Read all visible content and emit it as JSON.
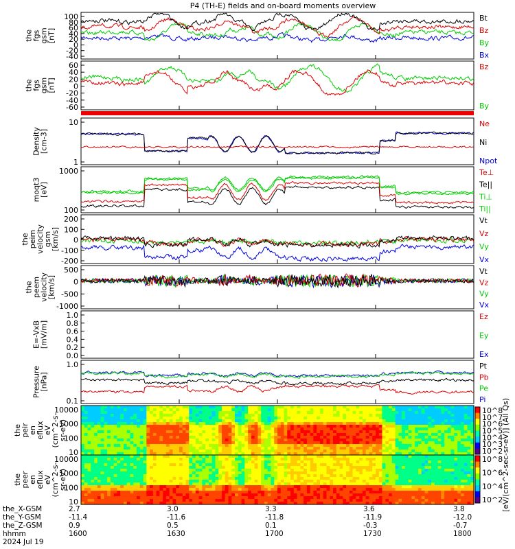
{
  "title": "P4 (TH-E) fields and on-board moments overview",
  "panels": [
    {
      "id": "fgs_gsm",
      "ylabel": [
        "the",
        "fgs",
        "gsm",
        "[nT]"
      ],
      "yticks": [
        "100",
        "80",
        "60",
        "40",
        "20",
        "0",
        "-20",
        "-40"
      ],
      "legend": [
        {
          "label": "Bt",
          "color": "#000000"
        },
        {
          "label": "Bz",
          "color": "#dd0000"
        },
        {
          "label": "By",
          "color": "#00cc00"
        },
        {
          "label": "Bx",
          "color": "#0000dd"
        }
      ],
      "ylim": [
        -40,
        100
      ]
    },
    {
      "id": "fgs_gsm_zoom",
      "ylabel": [
        "the",
        "fgs",
        "gsm",
        "[nT]"
      ],
      "yticks": [
        "60",
        "40",
        "20",
        "0",
        "-20",
        "-40",
        "-60"
      ],
      "legend": [
        {
          "label": "Bz",
          "color": "#dd0000"
        },
        {
          "label": "By",
          "color": "#00cc00"
        }
      ],
      "ylim": [
        -70,
        70
      ]
    },
    {
      "id": "density",
      "ylabel": [
        "Density",
        "[cm-3]"
      ],
      "yticks": [
        "10",
        "1"
      ],
      "legend": [
        {
          "label": "Ne",
          "color": "#dd0000"
        },
        {
          "label": "Ni",
          "color": "#000000"
        },
        {
          "label": "Npot",
          "color": "#0000dd"
        }
      ],
      "ylim": [
        1,
        60
      ],
      "log": true
    },
    {
      "id": "temperature",
      "ylabel": [
        "moqt3",
        "[eV]"
      ],
      "yticks": [
        "1000",
        "100"
      ],
      "legend": [
        {
          "label": "Te⊥",
          "color": "#dd0000"
        },
        {
          "label": "Te||",
          "color": "#000000"
        },
        {
          "label": "Ti⊥",
          "color": "#00cc00"
        },
        {
          "label": "Ti||",
          "color": "#00cc00"
        }
      ],
      "ylim": [
        20,
        1500
      ],
      "log": true
    },
    {
      "id": "peim_velocity",
      "ylabel": [
        "the",
        "peim",
        "velocity",
        "gsm",
        "[km/s]"
      ],
      "yticks": [
        "200",
        "100",
        "0",
        "-100",
        "-200"
      ],
      "legend": [
        {
          "label": "Vt",
          "color": "#000000"
        },
        {
          "label": "Vz",
          "color": "#dd0000"
        },
        {
          "label": "Vy",
          "color": "#00cc00"
        },
        {
          "label": "Vx",
          "color": "#0000dd"
        }
      ],
      "ylim": [
        -200,
        300
      ]
    },
    {
      "id": "peem_velocity",
      "ylabel": [
        "the",
        "peem",
        "velocity",
        "[km/s]"
      ],
      "yticks": [
        "500",
        "0",
        "-500",
        "-1000"
      ],
      "legend": [
        {
          "label": "Vt",
          "color": "#000000"
        },
        {
          "label": "Vz",
          "color": "#dd0000"
        },
        {
          "label": "Vy",
          "color": "#00cc00"
        },
        {
          "label": "Vx",
          "color": "#0000dd"
        }
      ],
      "ylim": [
        -1000,
        700
      ]
    },
    {
      "id": "efield",
      "ylabel": [
        "E=-VxB",
        "[mV/m]"
      ],
      "yticks": [
        "1.0",
        "0.8",
        "0.6",
        "0.4",
        "0.2",
        "0.0"
      ],
      "legend": [
        {
          "label": "Ez",
          "color": "#dd0000"
        },
        {
          "label": "Ey",
          "color": "#00cc00"
        },
        {
          "label": "Ex",
          "color": "#0000dd"
        }
      ],
      "ylim": [
        0,
        1
      ]
    },
    {
      "id": "pressure",
      "ylabel": [
        "Pressure",
        "[nPa]"
      ],
      "yticks": [
        "1.0",
        "0.1"
      ],
      "legend": [
        {
          "label": "Pt",
          "color": "#000000"
        },
        {
          "label": "Pb",
          "color": "#dd0000"
        },
        {
          "label": "Pe",
          "color": "#00cc00"
        },
        {
          "label": "Pi",
          "color": "#0000dd"
        }
      ],
      "ylim": [
        0.02,
        2.5
      ],
      "log": true
    },
    {
      "id": "peir_eflux",
      "ylabel": [
        "the",
        "peir",
        "en",
        "eflux",
        "eV",
        "(cm^2-s-",
        "sr-eV)"
      ],
      "yticks": [
        "10000",
        "1000",
        "100",
        "10"
      ]
    },
    {
      "id": "peer_eflux",
      "ylabel": [
        "the",
        "peer",
        "en",
        "eflux",
        "eV",
        "(cm^2-s-",
        "sr-eV)"
      ],
      "yticks": [
        "10000",
        "1000",
        "100",
        "10"
      ]
    }
  ],
  "colorbar": {
    "ticks_upper": [
      "10^8",
      "10^7",
      "10^6",
      "10^5",
      "10^4",
      "10^3",
      "10^2"
    ],
    "ticks_lower": [
      "10^8",
      "10^6",
      "10^4",
      "10^2"
    ],
    "label": "[eV/(cm^2-sec-sr-eV)] (All Qs)"
  },
  "xaxis": {
    "rows": [
      {
        "label": "the_X-GSM",
        "values": [
          "2.7",
          "3.0",
          "3.3",
          "3.6",
          "3.8"
        ]
      },
      {
        "label": "the_Y-GSM",
        "values": [
          "-11.4",
          "-11.6",
          "-11.8",
          "-11.9",
          "-12.0"
        ]
      },
      {
        "label": "the_Z-GSM",
        "values": [
          "0.9",
          "0.5",
          "0.1",
          "-0.3",
          "-0.7"
        ]
      },
      {
        "label": "hhmm",
        "values": [
          "1600",
          "1630",
          "1700",
          "1730",
          "1800"
        ]
      }
    ],
    "date": "2024 Jul 19"
  },
  "chart_data": {
    "type": "line",
    "x_label": "hhmm",
    "x_ticks": [
      "1600",
      "1630",
      "1700",
      "1730",
      "1800"
    ],
    "x_range": [
      "1600",
      "1800"
    ],
    "title": "P4 (TH-E) fields and on-board moments overview"
  }
}
